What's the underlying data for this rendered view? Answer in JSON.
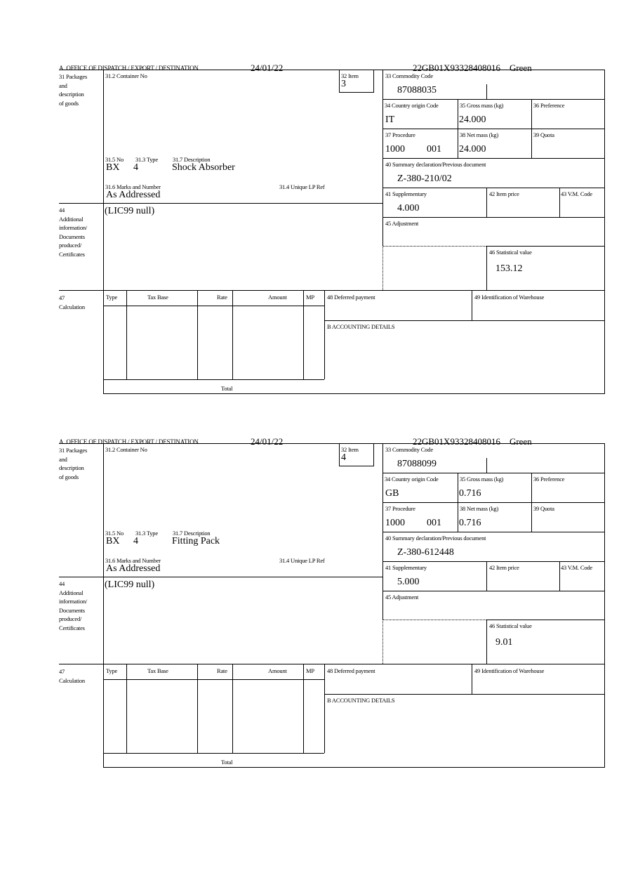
{
  "labels": {
    "office": "A.  OFFICE OF DISPATCH / EXPORT / DESTINATION",
    "packages": "31 Packages\nand\ndescription\nof goods",
    "container_no": "31.2 Container No",
    "item": "32 Item",
    "commodity_code": "33 Commodity Code",
    "country_origin": "34 Country origin Code",
    "gross_mass": "35 Gross mass (kg)",
    "preference": "36 Preference",
    "procedure": "37 Procedure",
    "net_mass": "38 Net mass (kg)",
    "quota": "39 Quota",
    "summary_declaration": "40 Summary declaration/Previous document",
    "supplementary": "41 Supplementary",
    "item_price": "42 Item price",
    "vm_code": "43 V.M. Code",
    "adjustment": "45 Adjustment",
    "statistical_value": "46 Statistical value",
    "pkg_no": "31.5 No",
    "pkg_type": "31.3 Type",
    "description": "31.7 Description",
    "marks": "31.6 Marks and Number",
    "unique_lp_ref": "31.4 Unique LP Ref",
    "additional_info": "44\nAdditional\ninformation/\nDocuments\nproduced/\nCertificates",
    "calculation": "47\nCalculation",
    "calc_type": "Type",
    "calc_tax_base": "Tax Base",
    "calc_rate": "Rate",
    "calc_amount": "Amount",
    "calc_mp": "MP",
    "total": "Total",
    "deferred_payment": "48 Deferred payment",
    "warehouse": "49 Identification of Warehouse",
    "accounting": "B ACCOUNTING DETAILS"
  },
  "items": [
    {
      "date": "24/01/22",
      "reference": "22GB01X93328408016    Green",
      "item": "3",
      "commodity_code": "87088035",
      "country_origin": "IT",
      "gross_mass": "24.000",
      "procedure": "1000",
      "procedure_ext": "001",
      "net_mass": "24.000",
      "previous_document": "Z-380-210/02",
      "supplementary": "4.000",
      "statistical_value": "153.12",
      "pkg_no": "BX",
      "pkg_type": "4",
      "description": "Shock Absorber",
      "marks": "As Addressed",
      "additional_info": "(LIC99 null)"
    },
    {
      "date": "24/01/22",
      "reference": "22GB01X93328408016    Green",
      "item": "4",
      "commodity_code": "87088099",
      "country_origin": "GB",
      "gross_mass": "0.716",
      "procedure": "1000",
      "procedure_ext": "001",
      "net_mass": "0.716",
      "previous_document": "Z-380-612448",
      "supplementary": "5.000",
      "statistical_value": "9.01",
      "pkg_no": "BX",
      "pkg_type": "4",
      "description": "Fitting Pack",
      "marks": "As Addressed",
      "additional_info": "(LIC99 null)"
    }
  ]
}
